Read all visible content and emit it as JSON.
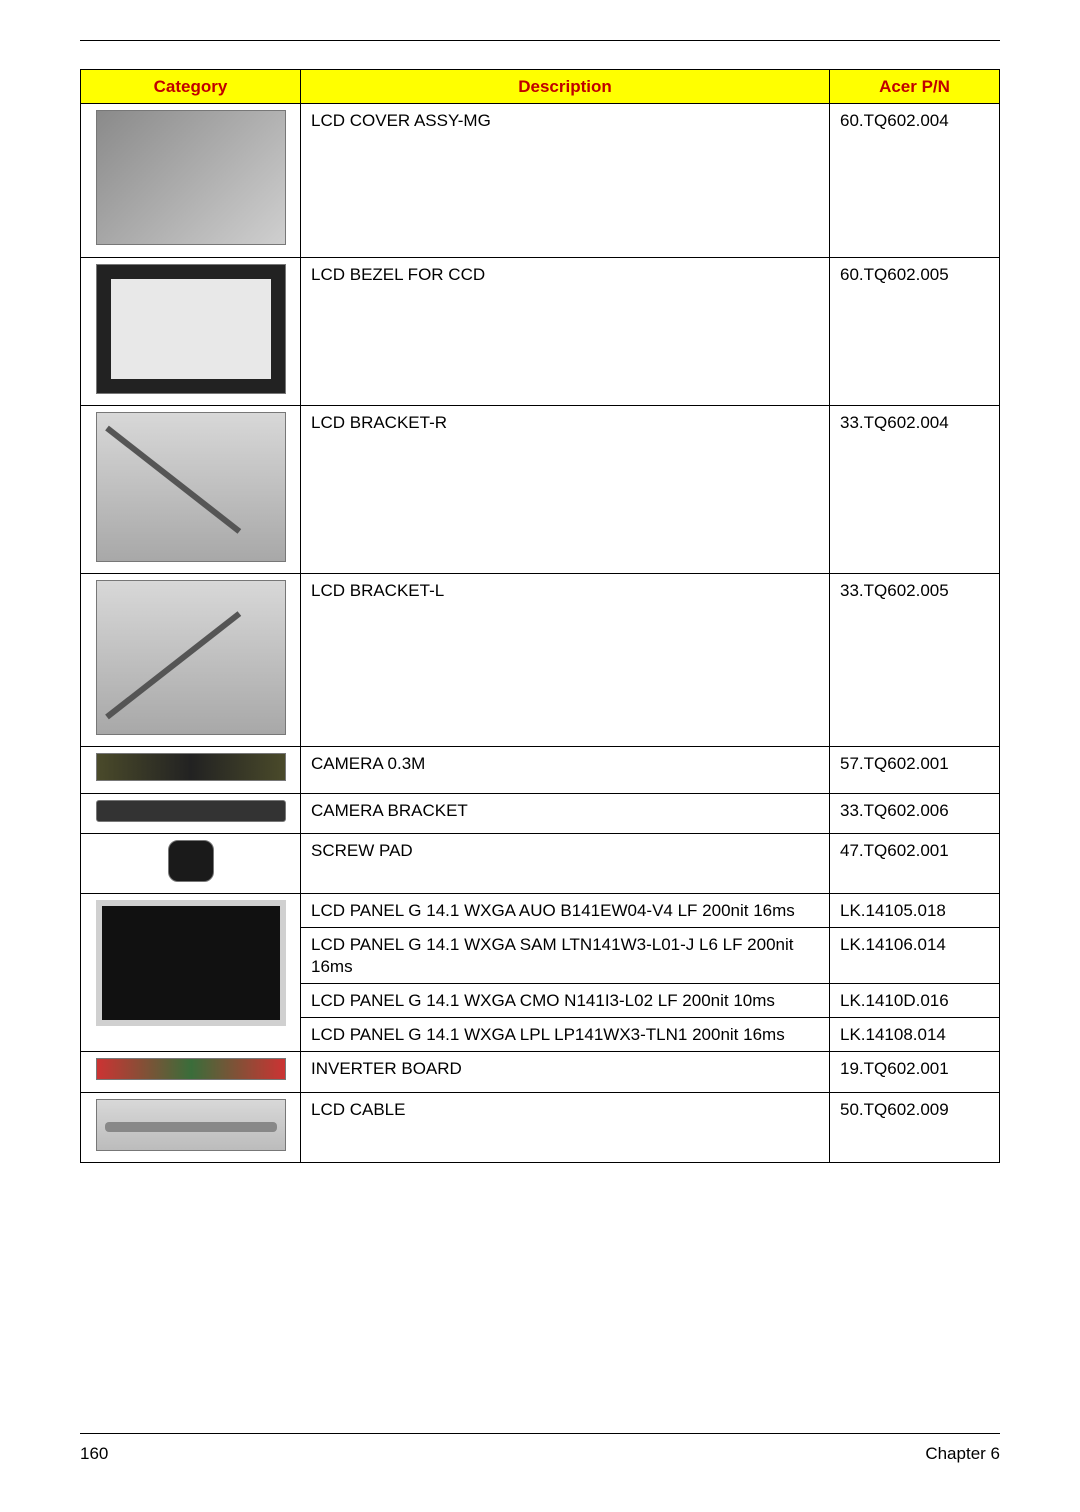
{
  "table": {
    "headers": {
      "category": "Category",
      "description": "Description",
      "part": "Acer P/N"
    },
    "header_bg": "#ffff00",
    "header_fg": "#c00000",
    "rows": [
      {
        "desc": "LCD COVER ASSY-MG",
        "pn": "60.TQ602.004"
      },
      {
        "desc": "LCD BEZEL FOR CCD",
        "pn": "60.TQ602.005"
      },
      {
        "desc": "LCD BRACKET-R",
        "pn": "33.TQ602.004"
      },
      {
        "desc": "LCD BRACKET-L",
        "pn": "33.TQ602.005"
      },
      {
        "desc": "CAMERA 0.3M",
        "pn": "57.TQ602.001"
      },
      {
        "desc": "CAMERA BRACKET",
        "pn": "33.TQ602.006"
      },
      {
        "desc": "SCREW PAD",
        "pn": "47.TQ602.001"
      },
      {
        "desc": "LCD PANEL G 14.1 WXGA AUO B141EW04-V4 LF 200nit 16ms",
        "pn": "LK.14105.018"
      },
      {
        "desc": "LCD PANEL G 14.1 WXGA SAM LTN141W3-L01-J L6 LF 200nit 16ms",
        "pn": "LK.14106.014"
      },
      {
        "desc": "LCD PANEL G 14.1 WXGA CMO N141I3-L02 LF 200nit 10ms",
        "pn": "LK.1410D.016"
      },
      {
        "desc": "LCD PANEL G 14.1 WXGA LPL LP141WX3-TLN1 200nit 16ms",
        "pn": "LK.14108.014"
      },
      {
        "desc": "INVERTER BOARD",
        "pn": "19.TQ602.001"
      },
      {
        "desc": "LCD CABLE",
        "pn": "50.TQ602.009"
      }
    ]
  },
  "footer": {
    "page_number": "160",
    "chapter": "Chapter 6"
  }
}
